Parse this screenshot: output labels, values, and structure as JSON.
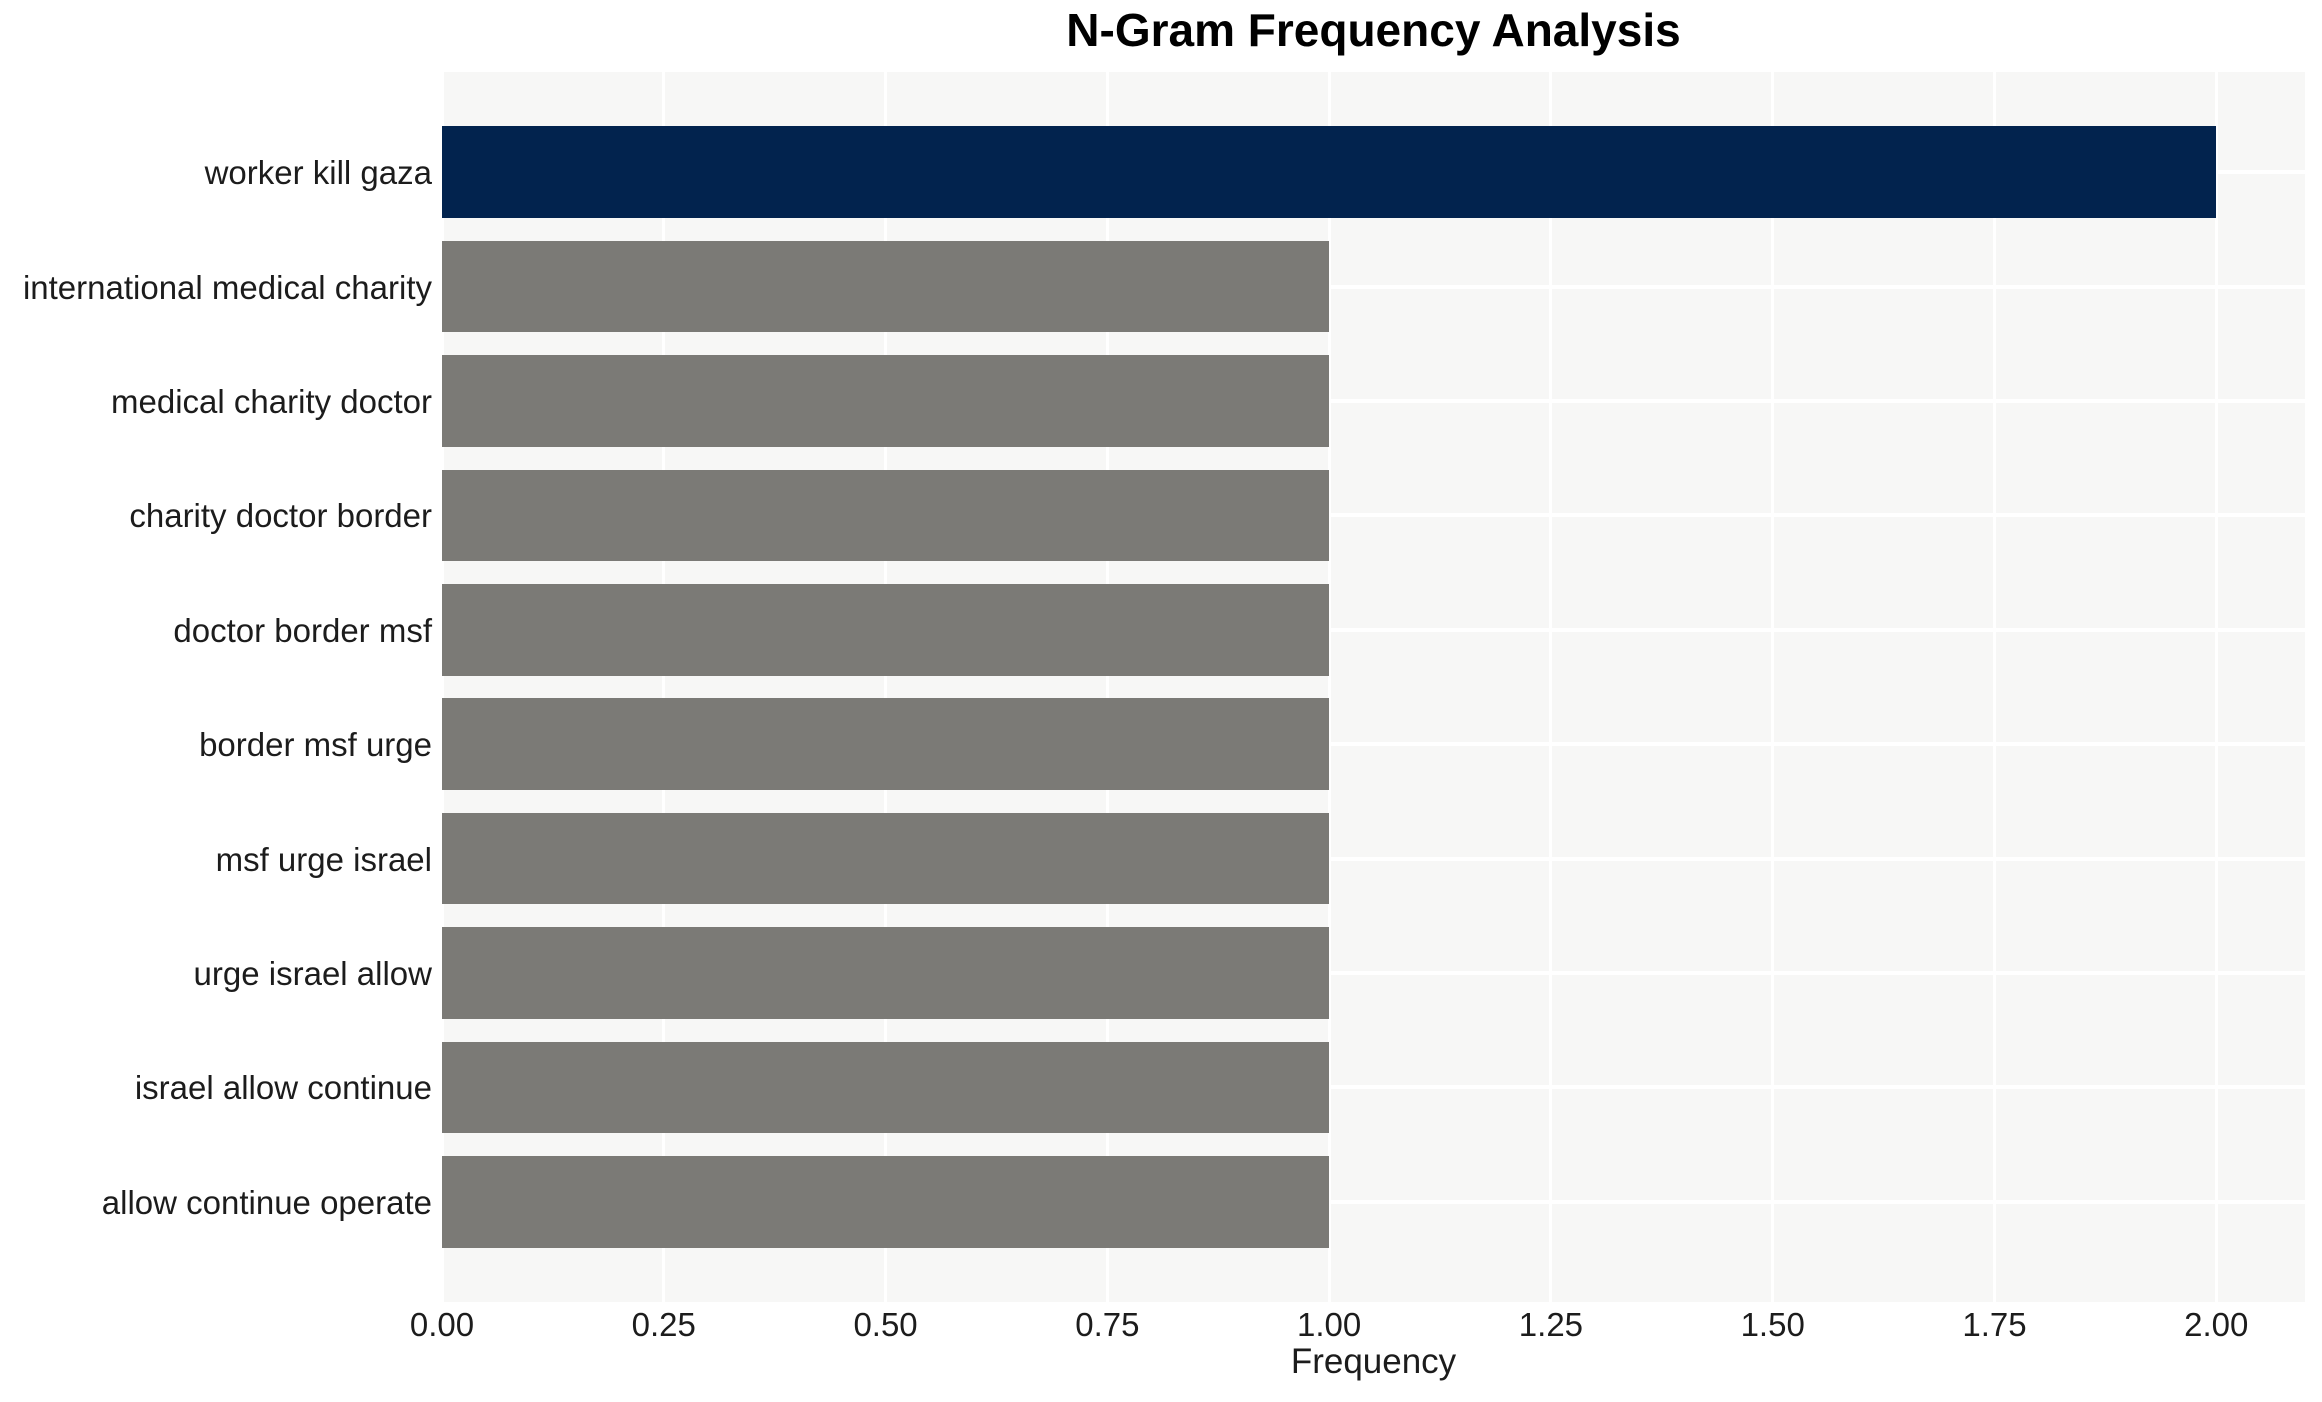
{
  "chart_data": {
    "type": "bar",
    "orientation": "horizontal",
    "title": "N-Gram Frequency Analysis",
    "xlabel": "Frequency",
    "ylabel": "",
    "categories": [
      "worker kill gaza",
      "international medical charity",
      "medical charity doctor",
      "charity doctor border",
      "doctor border msf",
      "border msf urge",
      "msf urge israel",
      "urge israel allow",
      "israel allow continue",
      "allow continue operate"
    ],
    "values": [
      2.0,
      1.0,
      1.0,
      1.0,
      1.0,
      1.0,
      1.0,
      1.0,
      1.0,
      1.0
    ],
    "bar_colors": [
      "#02234e",
      "#7b7a76",
      "#7b7a76",
      "#7b7a76",
      "#7b7a76",
      "#7b7a76",
      "#7b7a76",
      "#7b7a76",
      "#7b7a76",
      "#7b7a76"
    ],
    "xlim": [
      0,
      2.1
    ],
    "xticks": {
      "values": [
        0,
        0.25,
        0.5,
        0.75,
        1.0,
        1.25,
        1.5,
        1.75,
        2.0
      ],
      "labels": [
        "0.00",
        "0.25",
        "0.50",
        "0.75",
        "1.00",
        "1.25",
        "1.50",
        "1.75",
        "2.00"
      ]
    },
    "grid": true,
    "legend": "none",
    "colors": {
      "highlight_bar": "#02234e",
      "default_bar": "#7b7a76",
      "plot_background": "#f7f7f6",
      "gridline": "#ffffff",
      "figure_background": "#ffffff",
      "title_text": "#000000",
      "tick_text": "#1c1c1c"
    }
  }
}
